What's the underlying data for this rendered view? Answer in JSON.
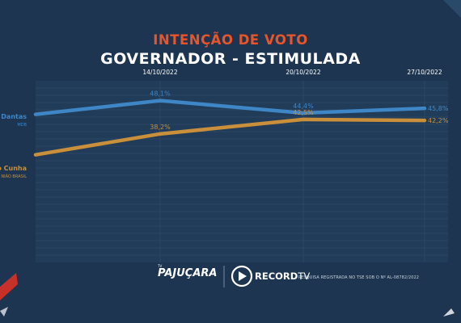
{
  "header": {
    "title": "INTENÇÃO DE VOTO",
    "subtitle": "GOVERNADOR - ESTIMULADA"
  },
  "colors": {
    "background": "#1d3550",
    "plot_area": "#213c58",
    "grid": "#2e4a66",
    "series_1": "#3e86c6",
    "series_2": "#c98f3a",
    "title_accent": "#e8552a"
  },
  "chart_data": {
    "type": "line",
    "x": [
      "14/10/2022",
      "20/10/2022",
      "27/10/2022"
    ],
    "series": [
      {
        "name": "lo Dantas",
        "party": "MDB",
        "start_value": 44.0,
        "values": [
          48.1,
          44.4,
          45.8
        ],
        "labels": [
          "48,1%",
          "44,4%",
          "45,8%"
        ]
      },
      {
        "name": "igo Cunha",
        "party": "NIÃO BRASIL",
        "start_value": 32.0,
        "values": [
          38.2,
          42.5,
          42.2
        ],
        "labels": [
          "38,2%",
          "42,5%",
          "42,2%"
        ]
      }
    ],
    "ylim": [
      0,
      54
    ],
    "grid": true
  },
  "footer": {
    "logo_pajucara": "PAJUÇARA",
    "logo_pajucara_small": "TV",
    "logo_record": "RECORD",
    "logo_record_suffix": "TV",
    "registration": "PESQUISA REGISTRADA NO TSE SOB O Nº AL-08782/2022"
  }
}
